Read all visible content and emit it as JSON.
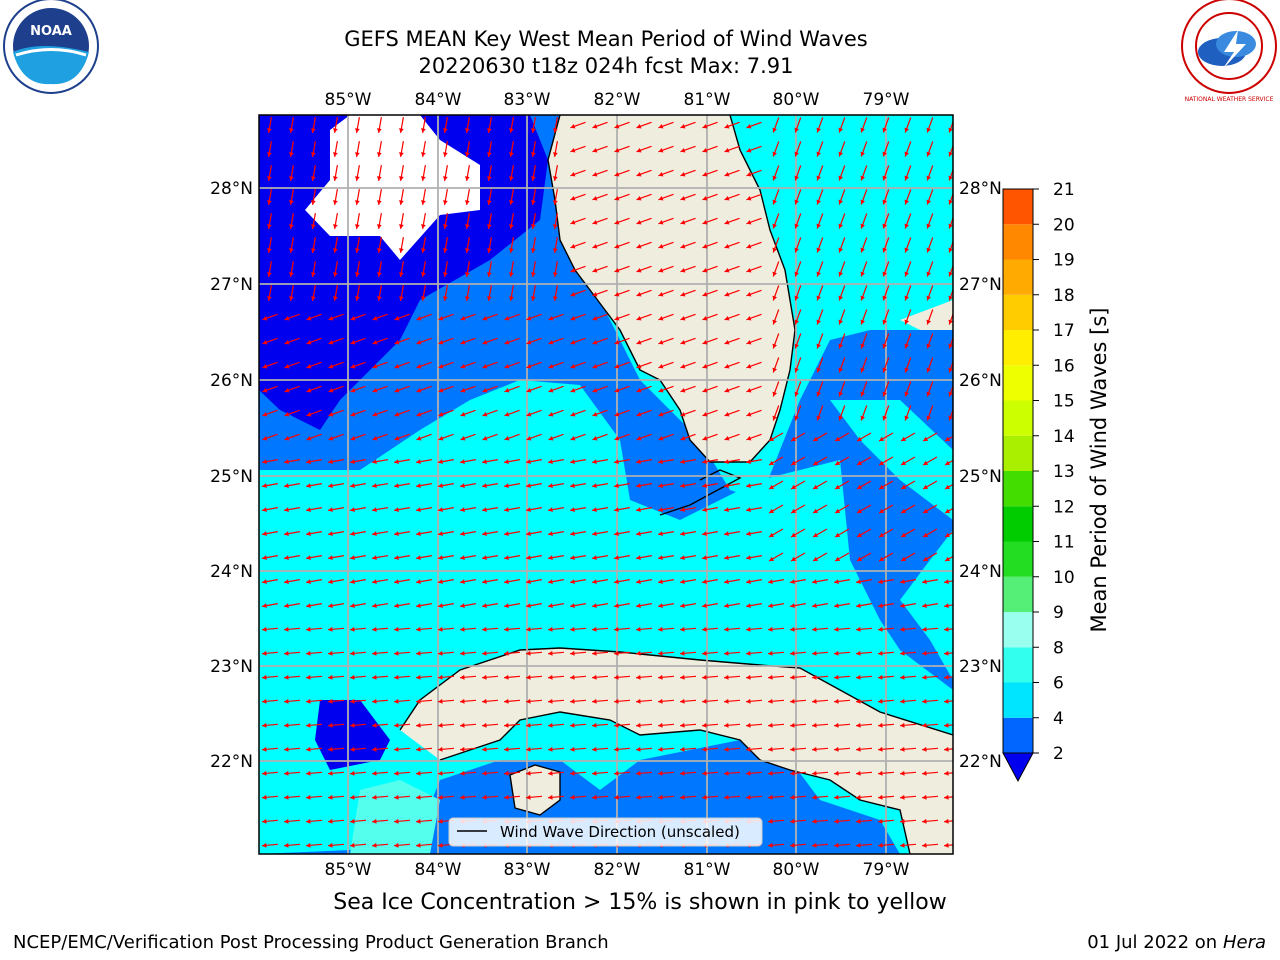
{
  "title": "GEFS MEAN Key West Mean Period of Wind Waves",
  "subtitle": "20220630 t18z 024h fcst   Max: 7.91",
  "caption": "Sea Ice Concentration > 15% is shown in pink to yellow",
  "footer_left": "NCEP/EMC/Verification Post Processing Product Generation Branch",
  "footer_date": "01 Jul 2022 on ",
  "footer_host": "Hera",
  "logos": {
    "left": "NOAA",
    "right": "NATIONAL WEATHER SERVICE"
  },
  "legend_label": "Wind Wave Direction (unscaled)",
  "lon_labels": [
    "85°W",
    "84°W",
    "83°W",
    "82°W",
    "81°W",
    "80°W",
    "79°W"
  ],
  "lat_labels": [
    "28°N",
    "27°N",
    "26°N",
    "25°N",
    "24°N",
    "23°N",
    "22°N"
  ],
  "colorbar": {
    "label": "Mean Period of Wind Waves [s]",
    "ticks": [
      "2",
      "4",
      "6",
      "8",
      "9",
      "10",
      "11",
      "12",
      "13",
      "14",
      "15",
      "16",
      "17",
      "18",
      "19",
      "20",
      "21"
    ],
    "colors": [
      "#0066ff",
      "#00e5ff",
      "#33ffee",
      "#99ffee",
      "#55ee77",
      "#22dd22",
      "#00cc00",
      "#44dd00",
      "#aaee00",
      "#ccff00",
      "#eeff00",
      "#ffee00",
      "#ffcc00",
      "#ffaa00",
      "#ff8800",
      "#ff5500",
      "#ff2200",
      "#ff0000"
    ],
    "under_color": "#0000ee"
  },
  "colors": {
    "land": "#efedde",
    "deep_blue": "#0000ee",
    "mid_blue": "#0077ff",
    "cyan": "#00ffff",
    "pale_cyan": "#55ffee",
    "arrow": "#ff0000",
    "grid": "#b0b0b0"
  }
}
